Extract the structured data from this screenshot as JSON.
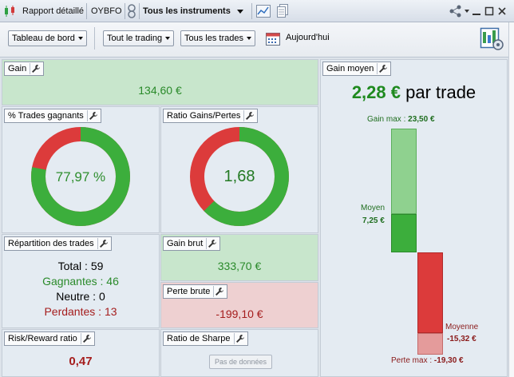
{
  "titlebar": {
    "report": "Rapport détaillé",
    "account": "OYBFO",
    "instruments": "Tous les instruments"
  },
  "toolbar": {
    "dashboard": "Tableau de bord",
    "trading": "Tout le trading",
    "trades": "Tous les trades",
    "today": "Aujourd'hui"
  },
  "gain": {
    "title": "Gain",
    "value": "134,60 €"
  },
  "win_trades": {
    "title": "% Trades gagnants",
    "value": "77,97 %",
    "fraction": 0.7797
  },
  "ratio_gl": {
    "title": "Ratio Gains/Pertes",
    "value": "1,68",
    "fraction": 0.627
  },
  "distribution": {
    "title": "Répartition des trades",
    "total_label": "Total :",
    "total_value": "59",
    "won_label": "Gagnantes :",
    "won_value": "46",
    "neutral_label": "Neutre :",
    "neutral_value": "0",
    "lost_label": "Perdantes :",
    "lost_value": "13"
  },
  "gross_gain": {
    "title": "Gain brut",
    "value": "333,70 €"
  },
  "gross_loss": {
    "title": "Perte brute",
    "value": "-199,10 €"
  },
  "risk_reward": {
    "title": "Risk/Reward ratio",
    "value": "0,47"
  },
  "sharpe": {
    "title": "Ratio de Sharpe",
    "nodata": "Pas de données"
  },
  "avg_gain": {
    "title": "Gain moyen",
    "value": "2,28 €",
    "unit": "par trade",
    "max_gain_label": "Gain max :",
    "max_gain_value": "23,50 €",
    "mean_label": "Moyen",
    "mean_value": "7,25 €",
    "mean_loss_label": "Moyenne",
    "mean_loss_value": "-15,32 €",
    "max_loss_label": "Perte max :",
    "max_loss_value": "-19,30 €"
  },
  "colors": {
    "green": "#3cae3c",
    "red": "#dc3b3b",
    "light_green": "#8fd18f",
    "light_red": "#e49b9b"
  }
}
